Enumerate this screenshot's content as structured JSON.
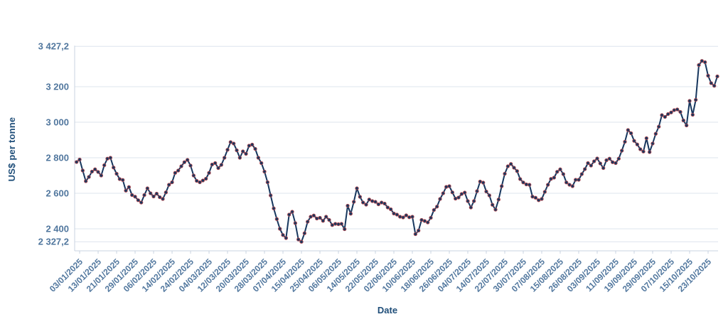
{
  "chart_data": {
    "type": "line",
    "title": "",
    "xlabel": "Date",
    "ylabel": "US$ per tonne",
    "legend_position": "none",
    "grid": "horizontal",
    "ylim": [
      2327.2,
      3427.2
    ],
    "yticks": [
      {
        "value": 3427.2,
        "label": "3 427,2"
      },
      {
        "value": 3200,
        "label": "3 200"
      },
      {
        "value": 3000,
        "label": "3 000"
      },
      {
        "value": 2800,
        "label": "2 800"
      },
      {
        "value": 2600,
        "label": "2 600"
      },
      {
        "value": 2400,
        "label": "2 400"
      },
      {
        "value": 2327.2,
        "label": "2 327,2"
      }
    ],
    "xtick_first_index": 1,
    "xtick_step": 6,
    "xtick_labels": [
      "03/01/2025",
      "13/01/2025",
      "21/01/2025",
      "29/01/2025",
      "06/02/2025",
      "14/02/2025",
      "24/02/2025",
      "04/03/2025",
      "12/03/2025",
      "20/03/2025",
      "28/03/2025",
      "07/04/2025",
      "15/04/2025",
      "25/04/2025",
      "06/05/2025",
      "14/05/2025",
      "22/05/2025",
      "02/06/2025",
      "10/06/2025",
      "18/06/2025",
      "26/06/2025",
      "04/07/2025",
      "14/07/2025",
      "22/07/2025",
      "30/07/2025",
      "07/08/2025",
      "15/08/2025",
      "26/08/2025",
      "03/09/2025",
      "11/09/2025",
      "19/09/2025",
      "29/09/2025",
      "07/10/2025",
      "15/10/2025",
      "23/10/2025"
    ],
    "x": [
      "02/01/2025",
      "03/01/2025",
      "06/01/2025",
      "07/01/2025",
      "08/01/2025",
      "09/01/2025",
      "10/01/2025",
      "13/01/2025",
      "14/01/2025",
      "15/01/2025",
      "16/01/2025",
      "17/01/2025",
      "20/01/2025",
      "21/01/2025",
      "22/01/2025",
      "23/01/2025",
      "24/01/2025",
      "27/01/2025",
      "28/01/2025",
      "29/01/2025",
      "30/01/2025",
      "31/01/2025",
      "03/02/2025",
      "04/02/2025",
      "05/02/2025",
      "06/02/2025",
      "07/02/2025",
      "10/02/2025",
      "11/02/2025",
      "12/02/2025",
      "13/02/2025",
      "14/02/2025",
      "17/02/2025",
      "18/02/2025",
      "19/02/2025",
      "20/02/2025",
      "21/02/2025",
      "24/02/2025",
      "25/02/2025",
      "26/02/2025",
      "27/02/2025",
      "28/02/2025",
      "03/03/2025",
      "04/03/2025",
      "05/03/2025",
      "06/03/2025",
      "07/03/2025",
      "10/03/2025",
      "11/03/2025",
      "12/03/2025",
      "13/03/2025",
      "14/03/2025",
      "17/03/2025",
      "18/03/2025",
      "19/03/2025",
      "20/03/2025",
      "21/03/2025",
      "24/03/2025",
      "25/03/2025",
      "26/03/2025",
      "27/03/2025",
      "28/03/2025",
      "31/03/2025",
      "01/04/2025",
      "02/04/2025",
      "03/04/2025",
      "04/04/2025",
      "07/04/2025",
      "08/04/2025",
      "09/04/2025",
      "10/04/2025",
      "11/04/2025",
      "14/04/2025",
      "15/04/2025",
      "16/04/2025",
      "17/04/2025",
      "22/04/2025",
      "23/04/2025",
      "24/04/2025",
      "25/04/2025",
      "28/04/2025",
      "29/04/2025",
      "30/04/2025",
      "01/05/2025",
      "02/05/2025",
      "06/05/2025",
      "07/05/2025",
      "08/05/2025",
      "09/05/2025",
      "12/05/2025",
      "13/05/2025",
      "14/05/2025",
      "15/05/2025",
      "16/05/2025",
      "19/05/2025",
      "20/05/2025",
      "21/05/2025",
      "22/05/2025",
      "23/05/2025",
      "27/05/2025",
      "28/05/2025",
      "29/05/2025",
      "30/05/2025",
      "02/06/2025",
      "03/06/2025",
      "04/06/2025",
      "05/06/2025",
      "06/06/2025",
      "09/06/2025",
      "10/06/2025",
      "11/06/2025",
      "12/06/2025",
      "13/06/2025",
      "16/06/2025",
      "17/06/2025",
      "18/06/2025",
      "19/06/2025",
      "20/06/2025",
      "23/06/2025",
      "24/06/2025",
      "25/06/2025",
      "26/06/2025",
      "27/06/2025",
      "30/06/2025",
      "01/07/2025",
      "02/07/2025",
      "03/07/2025",
      "04/07/2025",
      "07/07/2025",
      "08/07/2025",
      "09/07/2025",
      "10/07/2025",
      "11/07/2025",
      "14/07/2025",
      "15/07/2025",
      "16/07/2025",
      "17/07/2025",
      "18/07/2025",
      "21/07/2025",
      "22/07/2025",
      "23/07/2025",
      "24/07/2025",
      "25/07/2025",
      "28/07/2025",
      "29/07/2025",
      "30/07/2025",
      "31/07/2025",
      "01/08/2025",
      "04/08/2025",
      "05/08/2025",
      "06/08/2025",
      "07/08/2025",
      "08/08/2025",
      "11/08/2025",
      "12/08/2025",
      "13/08/2025",
      "14/08/2025",
      "15/08/2025",
      "18/08/2025",
      "19/08/2025",
      "20/08/2025",
      "21/08/2025",
      "22/08/2025",
      "26/08/2025",
      "27/08/2025",
      "28/08/2025",
      "29/08/2025",
      "01/09/2025",
      "02/09/2025",
      "03/09/2025",
      "04/09/2025",
      "05/09/2025",
      "08/09/2025",
      "09/09/2025",
      "10/09/2025",
      "11/09/2025",
      "12/09/2025",
      "15/09/2025",
      "16/09/2025",
      "17/09/2025",
      "18/09/2025",
      "19/09/2025",
      "22/09/2025",
      "23/09/2025",
      "24/09/2025",
      "25/09/2025",
      "26/09/2025",
      "29/09/2025",
      "30/09/2025",
      "01/10/2025",
      "02/10/2025",
      "03/10/2025",
      "06/10/2025",
      "07/10/2025",
      "08/10/2025",
      "09/10/2025",
      "10/10/2025",
      "13/10/2025",
      "14/10/2025",
      "15/10/2025",
      "16/10/2025",
      "17/10/2025",
      "20/10/2025",
      "21/10/2025",
      "22/10/2025",
      "23/10/2025",
      "24/10/2025",
      "27/10/2025",
      "28/10/2025"
    ],
    "series": [
      {
        "name": "US$ per tonne",
        "values": [
          2776,
          2790,
          2728,
          2668,
          2692,
          2722,
          2735,
          2720,
          2700,
          2758,
          2795,
          2800,
          2745,
          2710,
          2680,
          2675,
          2615,
          2635,
          2590,
          2581,
          2561,
          2548,
          2590,
          2628,
          2600,
          2582,
          2598,
          2578,
          2568,
          2605,
          2648,
          2662,
          2715,
          2728,
          2752,
          2775,
          2788,
          2756,
          2700,
          2670,
          2662,
          2672,
          2682,
          2715,
          2762,
          2770,
          2742,
          2760,
          2800,
          2845,
          2888,
          2880,
          2842,
          2800,
          2836,
          2822,
          2868,
          2874,
          2850,
          2800,
          2770,
          2722,
          2662,
          2588,
          2515,
          2455,
          2400,
          2365,
          2348,
          2480,
          2496,
          2432,
          2340,
          2327.2,
          2375,
          2440,
          2468,
          2475,
          2458,
          2462,
          2445,
          2468,
          2450,
          2421,
          2428,
          2426,
          2428,
          2398,
          2530,
          2485,
          2552,
          2628,
          2580,
          2548,
          2536,
          2565,
          2556,
          2552,
          2538,
          2548,
          2542,
          2520,
          2510,
          2486,
          2480,
          2468,
          2464,
          2476,
          2465,
          2468,
          2370,
          2390,
          2450,
          2444,
          2436,
          2462,
          2506,
          2525,
          2568,
          2600,
          2636,
          2640,
          2605,
          2570,
          2576,
          2596,
          2604,
          2556,
          2520,
          2556,
          2612,
          2666,
          2660,
          2610,
          2588,
          2535,
          2508,
          2565,
          2640,
          2710,
          2752,
          2765,
          2744,
          2725,
          2680,
          2661,
          2650,
          2648,
          2581,
          2575,
          2561,
          2568,
          2608,
          2648,
          2681,
          2688,
          2721,
          2735,
          2708,
          2661,
          2648,
          2640,
          2676,
          2676,
          2708,
          2736,
          2770,
          2756,
          2780,
          2796,
          2768,
          2742,
          2786,
          2795,
          2775,
          2770,
          2795,
          2840,
          2890,
          2956,
          2938,
          2895,
          2875,
          2848,
          2835,
          2910,
          2832,
          2880,
          2935,
          2975,
          3040,
          3030,
          3046,
          3055,
          3068,
          3072,
          3058,
          3010,
          2982,
          3120,
          3042,
          3126,
          3322,
          3345,
          3338,
          3262,
          3220,
          3205,
          3258
        ]
      }
    ],
    "colors": {
      "line": "#17375e",
      "marker_fill": "#17375e",
      "marker_edge": "#b04a52",
      "tick_label": "#51779e",
      "axis_title": "#1f4e79",
      "gridline": "#dde4ee",
      "axis_line": "#c9d3e0",
      "background": "#ffffff"
    }
  }
}
